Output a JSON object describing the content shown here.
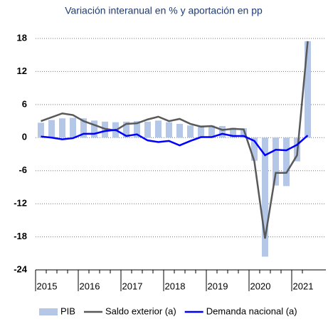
{
  "chart_data": {
    "type": "bar_line",
    "title": "Variación interanual en % y aportación en pp",
    "categories": [
      null,
      "2015",
      null,
      null,
      null,
      "2016",
      null,
      null,
      null,
      "2017",
      null,
      null,
      null,
      "2018",
      null,
      null,
      null,
      "2019",
      null,
      null,
      null,
      "2020",
      null,
      null,
      null,
      "2021"
    ],
    "series": [
      {
        "name": "PIB",
        "type": "bar",
        "color": "#b4c7e7",
        "values": [
          2.7,
          3.2,
          3.5,
          3.6,
          3.5,
          3.1,
          2.9,
          2.8,
          2.9,
          3.0,
          2.9,
          3.1,
          2.8,
          2.5,
          2.2,
          2.2,
          2.2,
          2.1,
          1.8,
          1.7,
          -4.2,
          -21.6,
          -8.7,
          -8.8,
          -4.3,
          17.5
        ]
      },
      {
        "name": "Saldo exterior (a)",
        "type": "line",
        "color": "#595959",
        "values": [
          3.0,
          3.7,
          4.4,
          4.1,
          3.0,
          2.3,
          1.6,
          1.3,
          2.5,
          2.6,
          3.3,
          3.8,
          3.0,
          3.4,
          2.5,
          2.0,
          2.1,
          1.4,
          1.6,
          1.5,
          -4.3,
          -18.3,
          -6.4,
          -6.4,
          -3.2,
          17.5
        ]
      },
      {
        "name": "Demanda nacional (a)",
        "type": "line",
        "color": "#0000ff",
        "values": [
          0.2,
          0.0,
          -0.3,
          -0.1,
          0.7,
          0.7,
          1.2,
          1.4,
          0.3,
          0.6,
          -0.5,
          -0.8,
          -0.6,
          -1.4,
          -0.6,
          0.1,
          0.1,
          0.7,
          0.3,
          0.3,
          -0.6,
          -3.2,
          -2.2,
          -2.3,
          -1.3,
          0.4
        ]
      }
    ],
    "ylim": [
      -24,
      18
    ],
    "yticks": [
      18,
      12,
      6,
      0,
      -6,
      -12,
      -18,
      -24
    ],
    "grid": true,
    "legend": "bottom"
  }
}
